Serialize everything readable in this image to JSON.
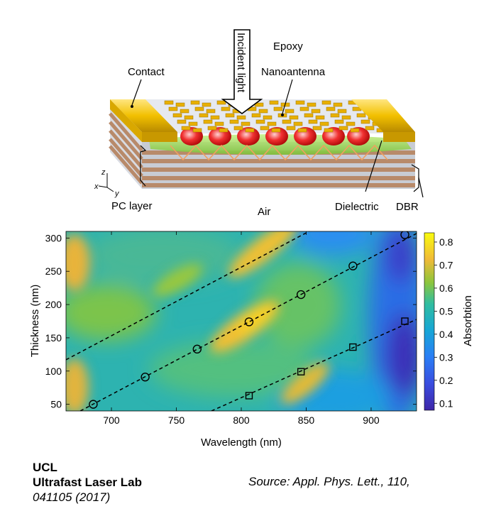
{
  "diagram": {
    "labels": {
      "incident_light": "Incident light",
      "epoxy": "Epoxy",
      "contact": "Contact",
      "nanoantenna": "Nanoantenna",
      "pc_layer": "PC layer",
      "air": "Air",
      "dielectric": "Dielectric",
      "dbr": "DBR",
      "axis_z": "z",
      "axis_x": "x",
      "axis_y": "y"
    },
    "colors": {
      "contact_gold": "#e8b400",
      "dielectric_green": "#8fd44a",
      "hotspot_red": "#e02020",
      "dbr_brown": "#b88a6a",
      "dbr_gray": "#c8ccd4"
    }
  },
  "chart_data": {
    "type": "heatmap",
    "xlabel": "Wavelength (nm)",
    "ylabel": "Thickness (nm)",
    "xlim": [
      665,
      935
    ],
    "ylim": [
      40,
      310
    ],
    "xticks": [
      700,
      750,
      800,
      850,
      900
    ],
    "yticks": [
      50,
      100,
      150,
      200,
      250,
      300
    ],
    "colorbar": {
      "label": "Absorbtion",
      "range": [
        0.07,
        0.84
      ],
      "ticks": [
        0.1,
        0.2,
        0.3,
        0.4,
        0.5,
        0.6,
        0.7,
        0.8
      ]
    },
    "dashed_lines": [
      {
        "x": [
          665,
          857
        ],
        "y": [
          117,
          315
        ]
      },
      {
        "x": [
          676,
          940
        ],
        "y": [
          40,
          312
        ]
      },
      {
        "x": [
          777,
          940
        ],
        "y": [
          40,
          182
        ]
      }
    ],
    "circle_markers": {
      "x": [
        686,
        726,
        766,
        806,
        846,
        886,
        926
      ],
      "y": [
        50,
        91,
        133,
        174,
        215,
        258,
        305
      ]
    },
    "square_markers": {
      "x": [
        806,
        846,
        886,
        926
      ],
      "y": [
        63,
        99,
        136,
        175
      ]
    }
  },
  "footer": {
    "org": "UCL",
    "lab": "Ultrafast Laser Lab",
    "ref_year": "041105 (2017)",
    "source": "Source: Appl. Phys. Lett., 110,"
  }
}
